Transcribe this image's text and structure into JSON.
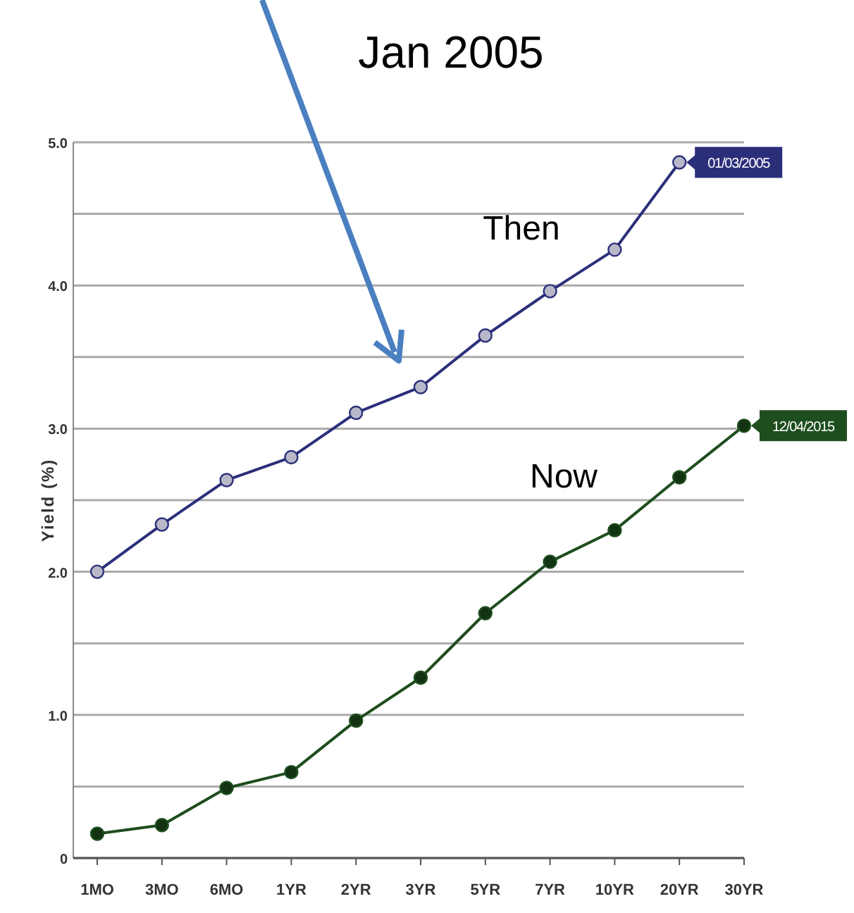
{
  "chart_data": {
    "type": "line",
    "ylabel": "Yield (%)",
    "categories": [
      "1MO",
      "3MO",
      "6MO",
      "1YR",
      "2YR",
      "3YR",
      "5YR",
      "7YR",
      "10YR",
      "20YR",
      "30YR"
    ],
    "series": [
      {
        "name": "01/03/2005",
        "color": "#2b2f7a",
        "values": [
          2.0,
          2.33,
          2.64,
          2.8,
          3.11,
          3.29,
          3.65,
          3.96,
          4.25,
          4.86,
          null
        ]
      },
      {
        "name": "12/04/2015",
        "color": "#1e4d1e",
        "values": [
          0.17,
          0.23,
          0.49,
          0.6,
          0.96,
          1.26,
          1.71,
          2.07,
          2.29,
          2.66,
          3.02
        ]
      }
    ],
    "ylim": [
      0,
      5
    ],
    "yticks": [
      0,
      {
        "value": 0.5,
        "label": null
      },
      {
        "value": 1,
        "label": "1.0"
      },
      {
        "value": 1.5,
        "label": null
      },
      {
        "value": 2,
        "label": "2.0"
      },
      {
        "value": 2.5,
        "label": null
      },
      {
        "value": 3,
        "label": "3.0"
      },
      {
        "value": 3.5,
        "label": null
      },
      {
        "value": 4,
        "label": "4.0"
      },
      {
        "value": 4.5,
        "label": null
      },
      {
        "value": 5,
        "label": "5.0"
      }
    ],
    "grid": "y",
    "marker": "circle",
    "line_style": "solid",
    "annotations": [
      "Jan 2005",
      "Then",
      "Now"
    ]
  }
}
